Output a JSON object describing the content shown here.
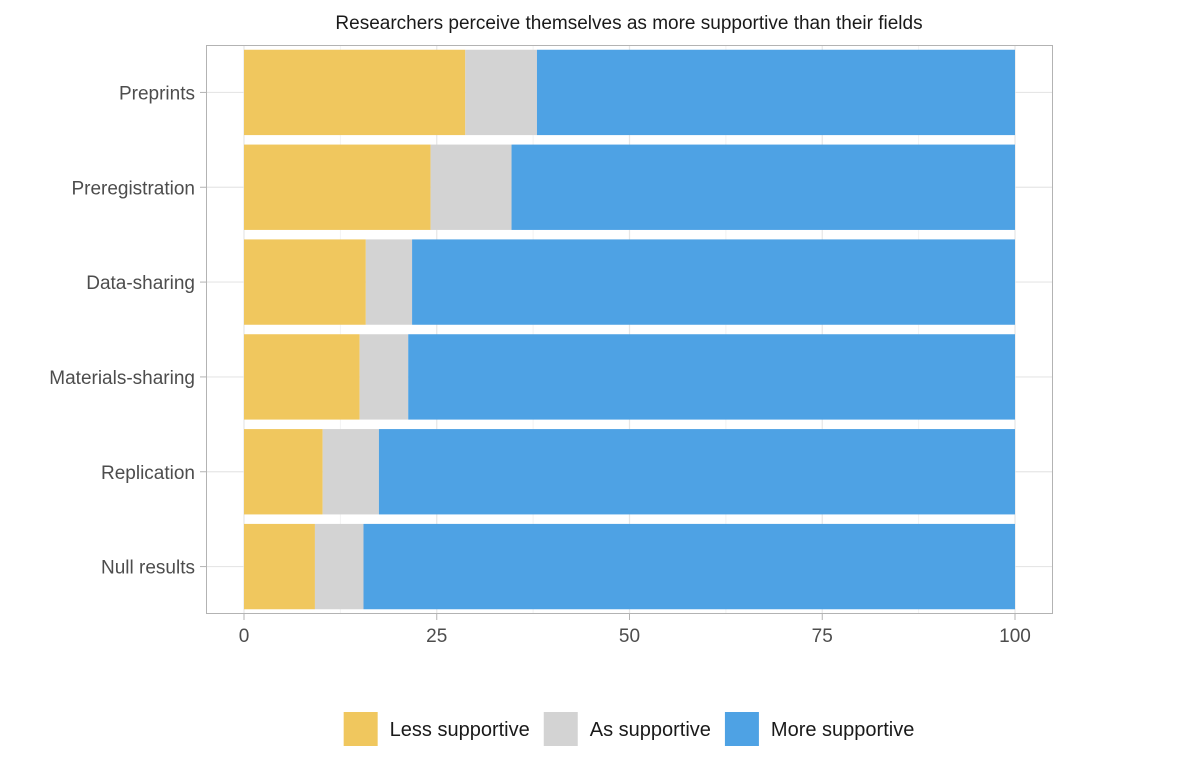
{
  "chart_data": {
    "type": "bar",
    "orientation": "horizontal",
    "stacked": true,
    "title": "Researchers perceive themselves as more supportive than their fields",
    "xlabel": "",
    "ylabel": "",
    "xlim": [
      0,
      100
    ],
    "x_ticks": [
      "0",
      "25",
      "50",
      "75",
      "100"
    ],
    "categories": [
      "Preprints",
      "Preregistration",
      "Data-sharing",
      "Materials-sharing",
      "Replication",
      "Null results"
    ],
    "series": [
      {
        "name": "Less supportive",
        "color": "#F0C75E",
        "values": [
          28.7,
          24.2,
          15.8,
          15.0,
          10.2,
          9.2
        ]
      },
      {
        "name": "As supportive",
        "color": "#D3D3D3",
        "values": [
          9.3,
          10.5,
          6.0,
          6.3,
          7.3,
          6.3
        ]
      },
      {
        "name": "More supportive",
        "color": "#4EA2E4",
        "values": [
          62.0,
          65.3,
          78.2,
          78.7,
          82.5,
          84.5
        ]
      }
    ],
    "grid": true,
    "legend_position": "bottom"
  }
}
